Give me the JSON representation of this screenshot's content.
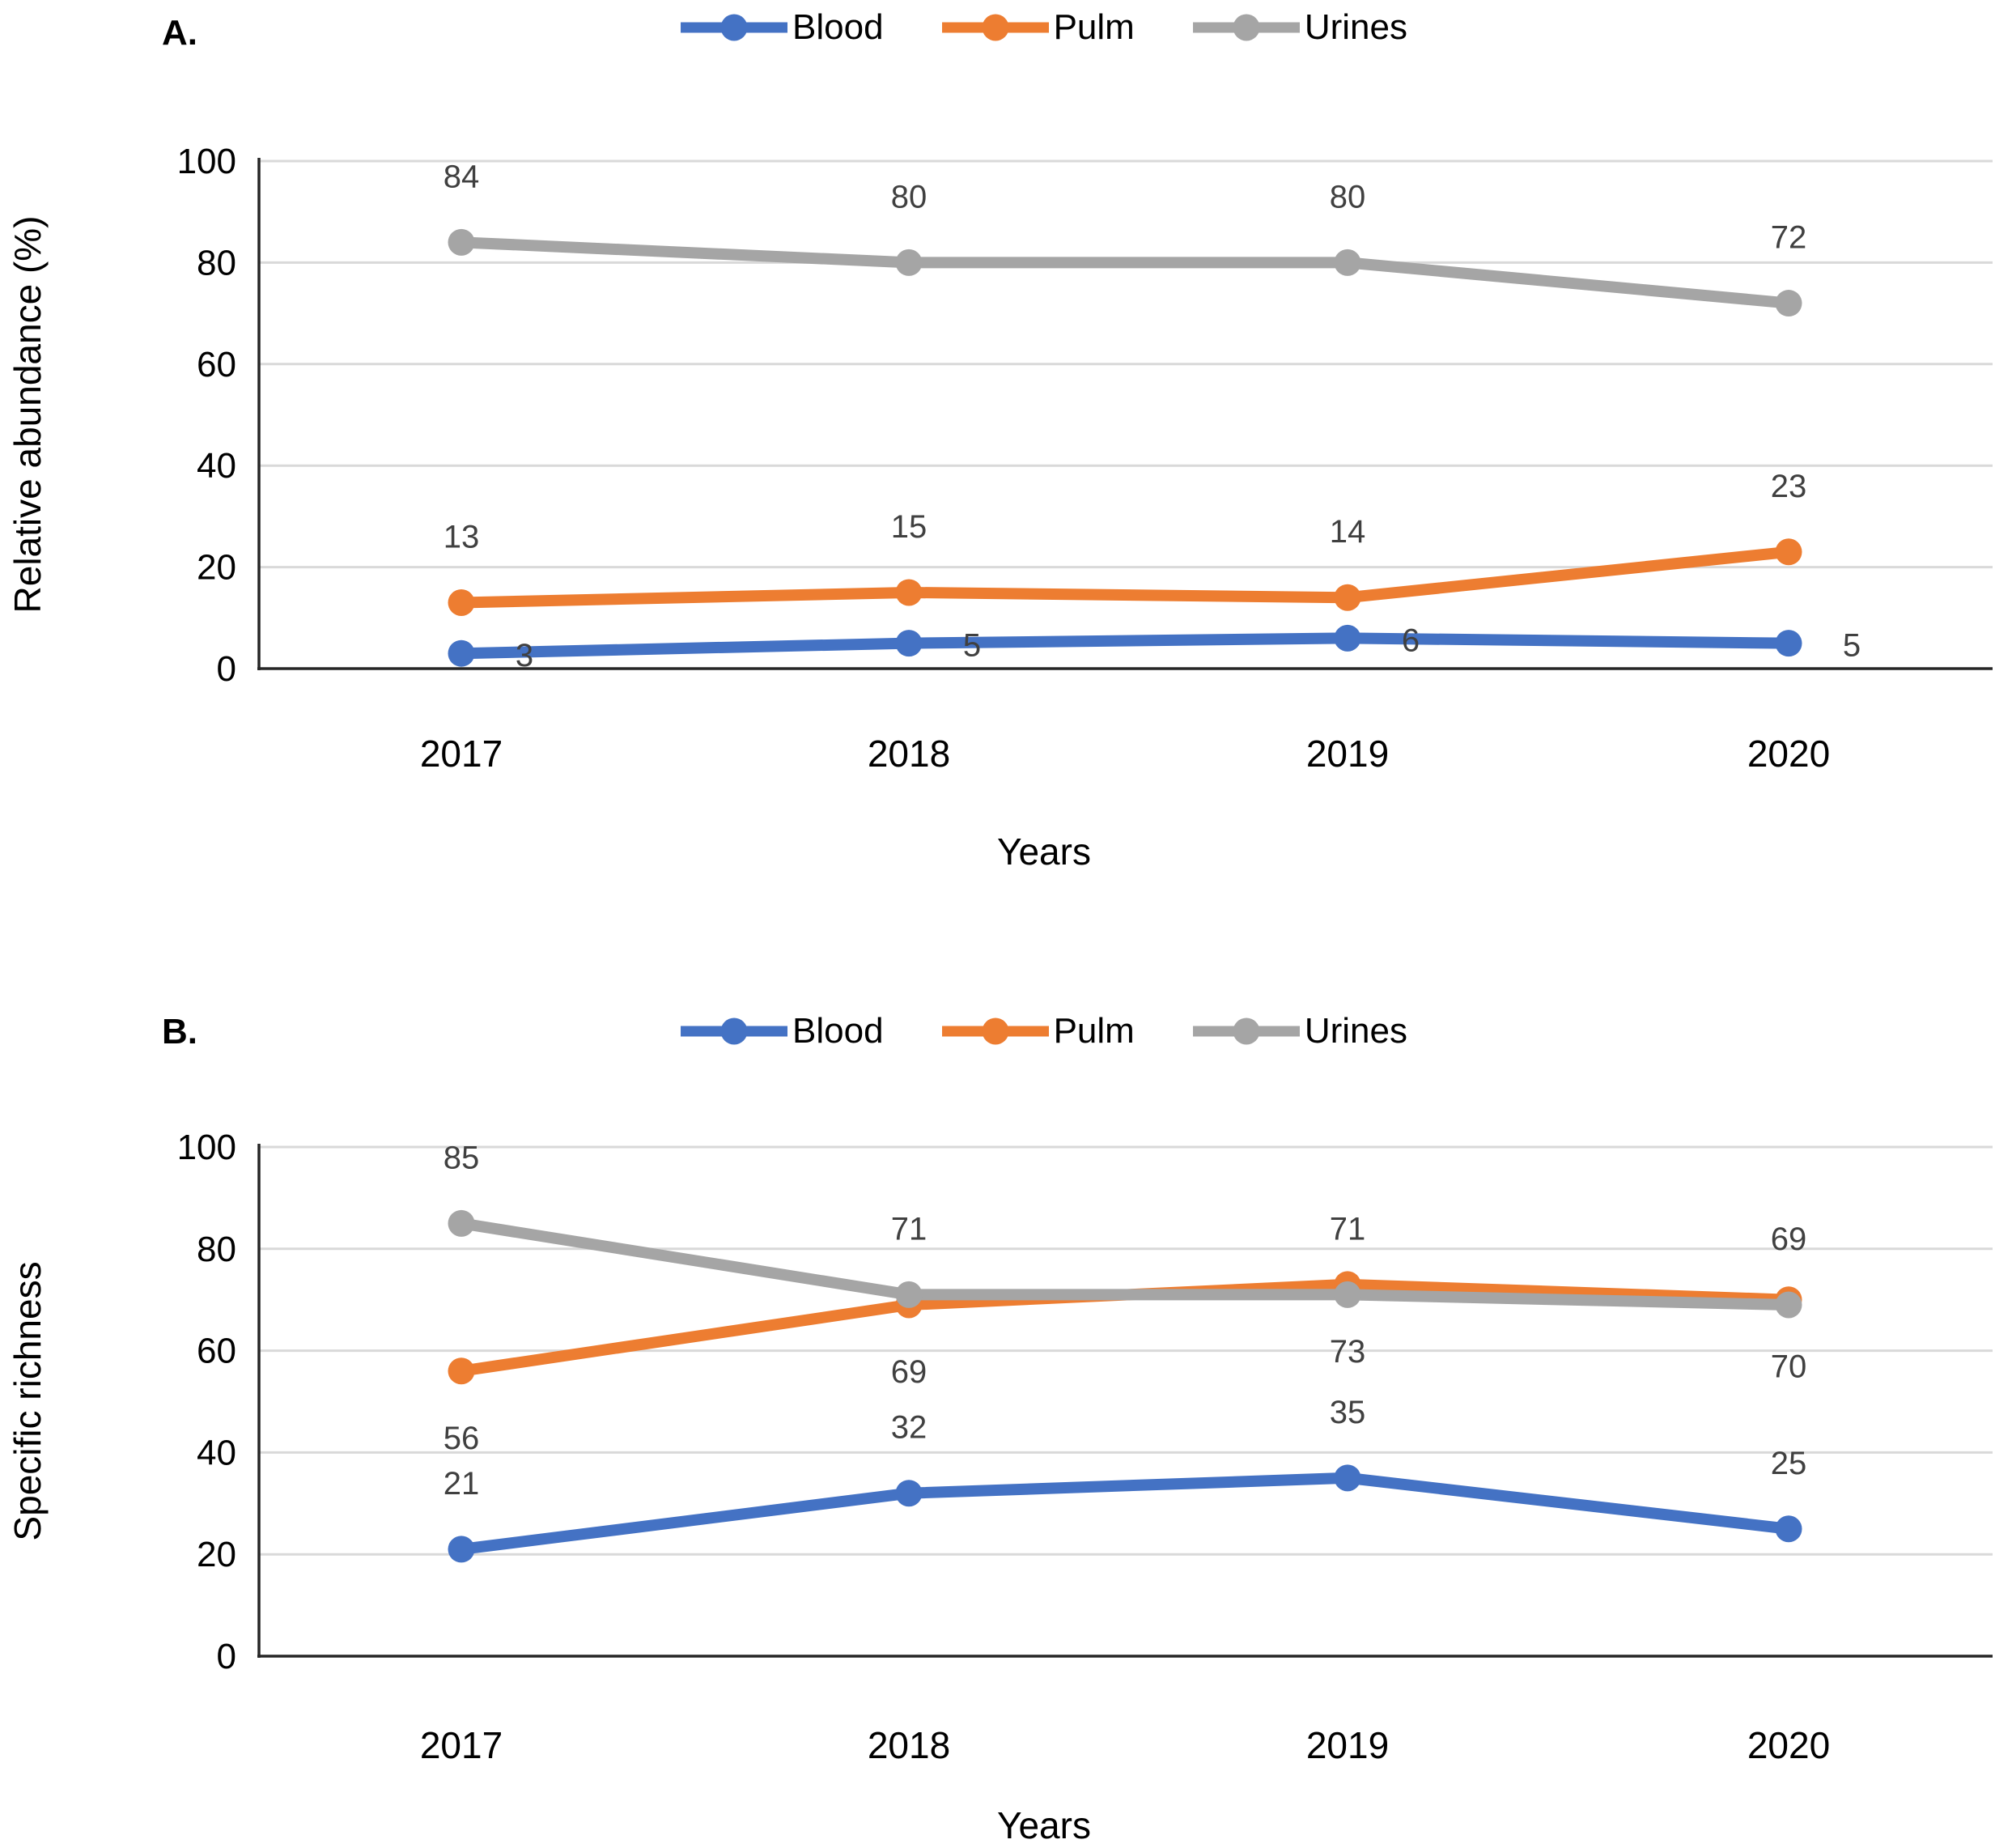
{
  "figure": {
    "background": "#ffffff",
    "panels": [
      "A.",
      "B."
    ]
  },
  "colors": {
    "blood": "#4472C4",
    "pulm": "#ED7D31",
    "urines": "#A5A5A5",
    "data_label": "#404040",
    "gridline": "#D9D9D9",
    "axis": "#262626",
    "text": "#000000"
  },
  "chart_data": [
    {
      "id": "A",
      "type": "line",
      "panel_label": "A.",
      "title": "",
      "xlabel": "Years",
      "ylabel": "Relative abundance (%)",
      "categories": [
        "2017",
        "2018",
        "2019",
        "2020"
      ],
      "ylim": [
        0,
        100
      ],
      "yticks": [
        0,
        20,
        40,
        60,
        80,
        100
      ],
      "grid": true,
      "legend_position": "top-center",
      "series": [
        {
          "name": "Blood",
          "color": "#4472C4",
          "values": [
            3,
            5,
            6,
            5
          ],
          "label_placement": "right"
        },
        {
          "name": "Pulm",
          "color": "#ED7D31",
          "values": [
            13,
            15,
            14,
            23
          ],
          "label_placement": "above"
        },
        {
          "name": "Urines",
          "color": "#A5A5A5",
          "values": [
            84,
            80,
            80,
            72
          ],
          "label_placement": "above"
        }
      ]
    },
    {
      "id": "B",
      "type": "line",
      "panel_label": "B.",
      "title": "",
      "xlabel": "Years",
      "ylabel": "Specific richness",
      "categories": [
        "2017",
        "2018",
        "2019",
        "2020"
      ],
      "ylim": [
        0,
        100
      ],
      "yticks": [
        0,
        20,
        40,
        60,
        80,
        100
      ],
      "grid": true,
      "legend_position": "top-center",
      "series": [
        {
          "name": "Blood",
          "color": "#4472C4",
          "values": [
            21,
            32,
            35,
            25
          ],
          "label_placement": "above"
        },
        {
          "name": "Pulm",
          "color": "#ED7D31",
          "values": [
            56,
            69,
            73,
            70
          ],
          "label_placement": "below"
        },
        {
          "name": "Urines",
          "color": "#A5A5A5",
          "values": [
            85,
            71,
            71,
            69
          ],
          "label_placement": "above"
        }
      ]
    }
  ]
}
